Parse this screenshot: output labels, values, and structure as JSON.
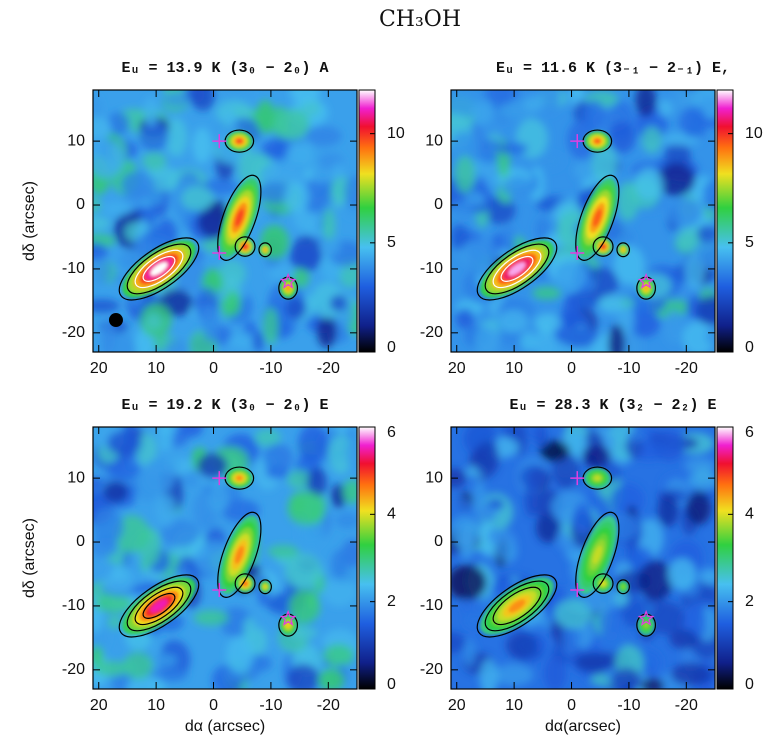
{
  "title": "CH₃OH",
  "chart_data": [
    {
      "type": "map",
      "title": "Eᵤ = 13.9 K (3₀ − 2₀) A",
      "ylabel": "dδ (arcsec)",
      "xlim": [
        21,
        -25
      ],
      "ylim": [
        -23,
        18
      ],
      "xticks": [
        20,
        10,
        0,
        -10,
        -20
      ],
      "yticks": [
        -20,
        -10,
        0,
        10
      ],
      "clim": [
        0,
        12
      ],
      "cticks": [
        0,
        5,
        10
      ]
    },
    {
      "type": "map",
      "title": "Eᵤ = 11.6 K (3₋₁ − 2₋₁) E,",
      "xlim": [
        21,
        -25
      ],
      "ylim": [
        -23,
        18
      ],
      "xticks": [
        20,
        10,
        0,
        -10,
        -20
      ],
      "yticks": [
        -20,
        -10,
        0,
        10
      ],
      "clim": [
        0,
        12
      ],
      "cticks": [
        0,
        5,
        10
      ]
    },
    {
      "type": "map",
      "title": "Eᵤ = 19.2 K (3₀ − 2₀) E",
      "xlabel": "dα (arcsec)",
      "ylabel": "dδ (arcsec)",
      "xlim": [
        21,
        -25
      ],
      "ylim": [
        -23,
        18
      ],
      "xticks": [
        20,
        10,
        0,
        -10,
        -20
      ],
      "yticks": [
        -20,
        -10,
        0,
        10
      ],
      "clim": [
        0,
        6
      ],
      "cticks": [
        0,
        2,
        4,
        6
      ]
    },
    {
      "type": "map",
      "title": "Eᵤ = 28.3 K (3₂ − 2₂) E",
      "xlabel": "dα(arcsec)",
      "xlim": [
        21,
        -25
      ],
      "ylim": [
        -23,
        18
      ],
      "xticks": [
        20,
        10,
        0,
        -10,
        -20
      ],
      "yticks": [
        -20,
        -10,
        0,
        10
      ],
      "clim": [
        0,
        6
      ],
      "cticks": [
        0,
        2,
        4,
        6
      ]
    }
  ]
}
